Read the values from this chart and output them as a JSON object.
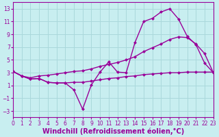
{
  "bg_color": "#c8eef0",
  "grid_color": "#aad8db",
  "line_color": "#990099",
  "xlabel": "Windchill (Refroidissement éolien,°C)",
  "xlim": [
    0,
    23
  ],
  "ylim": [
    -4,
    14
  ],
  "yticks": [
    -3,
    -1,
    1,
    3,
    5,
    7,
    9,
    11,
    13
  ],
  "xticks": [
    0,
    1,
    2,
    3,
    4,
    5,
    6,
    7,
    8,
    9,
    10,
    11,
    12,
    13,
    14,
    15,
    16,
    17,
    18,
    19,
    20,
    21,
    22,
    23
  ],
  "series1_x": [
    0,
    1,
    2,
    3,
    4,
    5,
    6,
    7,
    8,
    9,
    10,
    11,
    12,
    13,
    14,
    15,
    16,
    17,
    18,
    19,
    20,
    21,
    22,
    23
  ],
  "series1_y": [
    3.2,
    2.5,
    2.0,
    2.1,
    1.5,
    1.4,
    1.4,
    1.5,
    1.5,
    1.7,
    1.9,
    2.1,
    2.2,
    2.4,
    2.5,
    2.7,
    2.8,
    2.9,
    3.0,
    3.0,
    3.1,
    3.1,
    3.1,
    3.1
  ],
  "series2_x": [
    0,
    1,
    2,
    3,
    4,
    5,
    6,
    7,
    8,
    9,
    10,
    11,
    12,
    13,
    14,
    15,
    16,
    17,
    18,
    19,
    20,
    21,
    22,
    23
  ],
  "series2_y": [
    3.2,
    2.5,
    2.0,
    2.1,
    1.5,
    1.4,
    1.4,
    0.3,
    -2.7,
    1.1,
    3.1,
    4.7,
    3.1,
    3.0,
    7.7,
    11.0,
    11.5,
    12.5,
    13.0,
    11.4,
    8.7,
    7.4,
    4.5,
    3.0
  ],
  "series3_x": [
    0,
    1,
    2,
    3,
    4,
    5,
    6,
    7,
    8,
    9,
    10,
    11,
    12,
    13,
    14,
    15,
    16,
    17,
    18,
    19,
    20,
    21,
    22,
    23
  ],
  "series3_y": [
    3.2,
    2.5,
    2.2,
    2.5,
    2.6,
    2.8,
    3.0,
    3.2,
    3.3,
    3.6,
    4.0,
    4.3,
    4.6,
    5.0,
    5.5,
    6.3,
    6.9,
    7.5,
    8.2,
    8.6,
    8.5,
    7.5,
    6.0,
    3.0
  ],
  "marker": "D",
  "markersize": 2.5,
  "linewidth": 1.0,
  "xlabel_fontsize": 7,
  "tick_fontsize": 5.5
}
